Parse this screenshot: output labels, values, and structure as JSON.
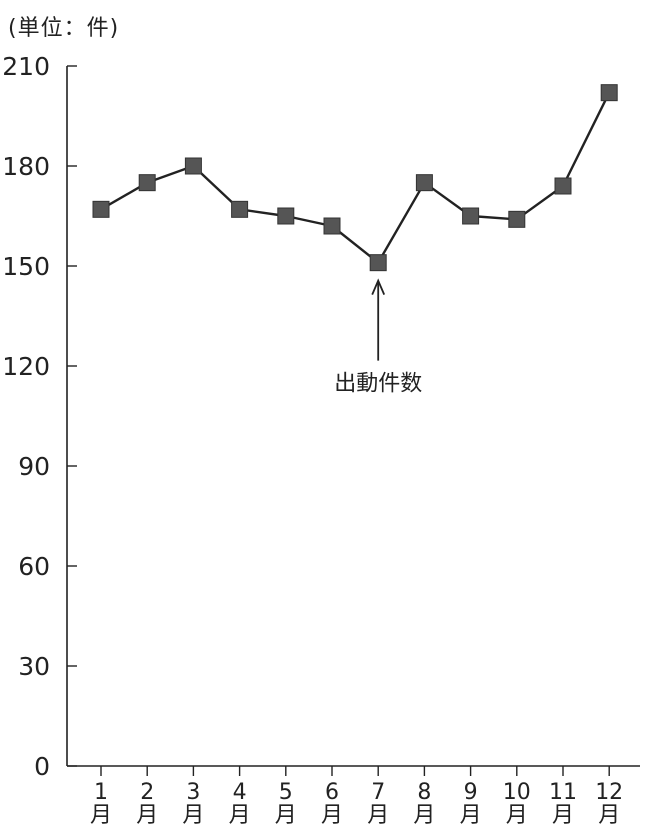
{
  "chart_data": {
    "type": "line",
    "unit_label": "(単位：件)",
    "categories": [
      "1\n月",
      "2\n月",
      "3\n月",
      "4\n月",
      "5\n月",
      "6\n月",
      "7\n月",
      "8\n月",
      "9\n月",
      "10\n月",
      "11\n月",
      "12\n月"
    ],
    "series": [
      {
        "name": "出動件数",
        "values": [
          167,
          175,
          180,
          167,
          165,
          162,
          151,
          175,
          165,
          164,
          174,
          202
        ]
      }
    ],
    "annotation": {
      "text": "出動件数",
      "points_to_category_index": 6
    },
    "ylim": [
      0,
      210
    ],
    "yticks": [
      0,
      30,
      60,
      90,
      120,
      150,
      180,
      210
    ],
    "grid": false,
    "legend": "none",
    "colors": {
      "line": "#222222",
      "marker": "#555555",
      "axis": "#222222"
    }
  }
}
